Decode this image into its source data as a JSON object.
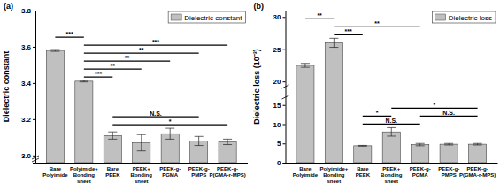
{
  "chart_data": [
    {
      "type": "bar",
      "title": "(a)",
      "y_label": "Dielectric constant",
      "categories": [
        "Bare\nPolyimide",
        "Polyimide+\nBonding\nsheet",
        "Bare\nPEEK",
        "PEEK+\nBonding\nsheet",
        "PEEK-g-\nPGMA",
        "PEEK-g-\nPMPS",
        "PEEK-g-\nP(GMA-r-MPS)"
      ],
      "series": [
        {
          "name": "Dielectric constant",
          "color": "#c0c0c0",
          "values": [
            3.58,
            3.41,
            3.11,
            3.07,
            3.12,
            3.08,
            3.075
          ],
          "errors": [
            0.005,
            0.004,
            0.02,
            0.045,
            0.03,
            0.025,
            0.015
          ]
        }
      ],
      "ylim": [
        2.96,
        3.8
      ],
      "yticks": [
        {
          "value": 3,
          "label": "3.0"
        },
        3.2,
        3.4,
        3.6,
        3.8
      ],
      "legend": "upper right",
      "significance": [
        {
          "from": 2,
          "to": 6,
          "label": "*"
        },
        {
          "from": 2,
          "to": 5,
          "label": "N.S."
        },
        {
          "from": 1,
          "to": 2,
          "label": "***"
        },
        {
          "from": 1,
          "to": 3,
          "label": "**"
        },
        {
          "from": 1,
          "to": 4,
          "label": "**"
        },
        {
          "from": 1,
          "to": 5,
          "label": "**"
        },
        {
          "from": 1,
          "to": 6,
          "label": "***"
        },
        {
          "from": 0,
          "to": 1,
          "label": "***"
        }
      ]
    },
    {
      "type": "bar",
      "title": "(b)",
      "y_label": "Dielectric loss (10⁻³)",
      "categories": [
        "Bare\nPolyimide",
        "Polyimide+\nBonding\nsheet",
        "Bare\nPEEK",
        "PEEK+\nBonding\nsheet",
        "PEEK-g-\nPGMA",
        "PEEK-g-\nPMPS",
        "PEEK-g-\nP(GMA-r-MPS)"
      ],
      "series": [
        {
          "name": "Dielectric loss",
          "color": "#c0c0c0",
          "values": [
            22.5,
            26,
            4.4,
            8,
            4.7,
            4.8,
            4.8
          ],
          "errors": [
            0.3,
            0.7,
            0.1,
            1.1,
            0.3,
            0.2,
            0.2
          ]
        }
      ],
      "ylim": [
        0,
        31
      ],
      "ybreak": [
        17,
        19.2
      ],
      "yticks": [
        0,
        5,
        10,
        15,
        20,
        25,
        30
      ],
      "legend": "upper right",
      "significance": [
        {
          "from": 2,
          "to": 4,
          "label": "N.S."
        },
        {
          "from": 4,
          "to": 6,
          "label": "N.S."
        },
        {
          "from": 2,
          "to": 3,
          "label": "*"
        },
        {
          "from": 3,
          "to": 6,
          "label": "*"
        },
        {
          "from": 1,
          "to": 2,
          "label": "***"
        },
        {
          "from": 1,
          "to": 4,
          "label": "**"
        },
        {
          "from": 0,
          "to": 1,
          "label": "**"
        }
      ]
    }
  ]
}
